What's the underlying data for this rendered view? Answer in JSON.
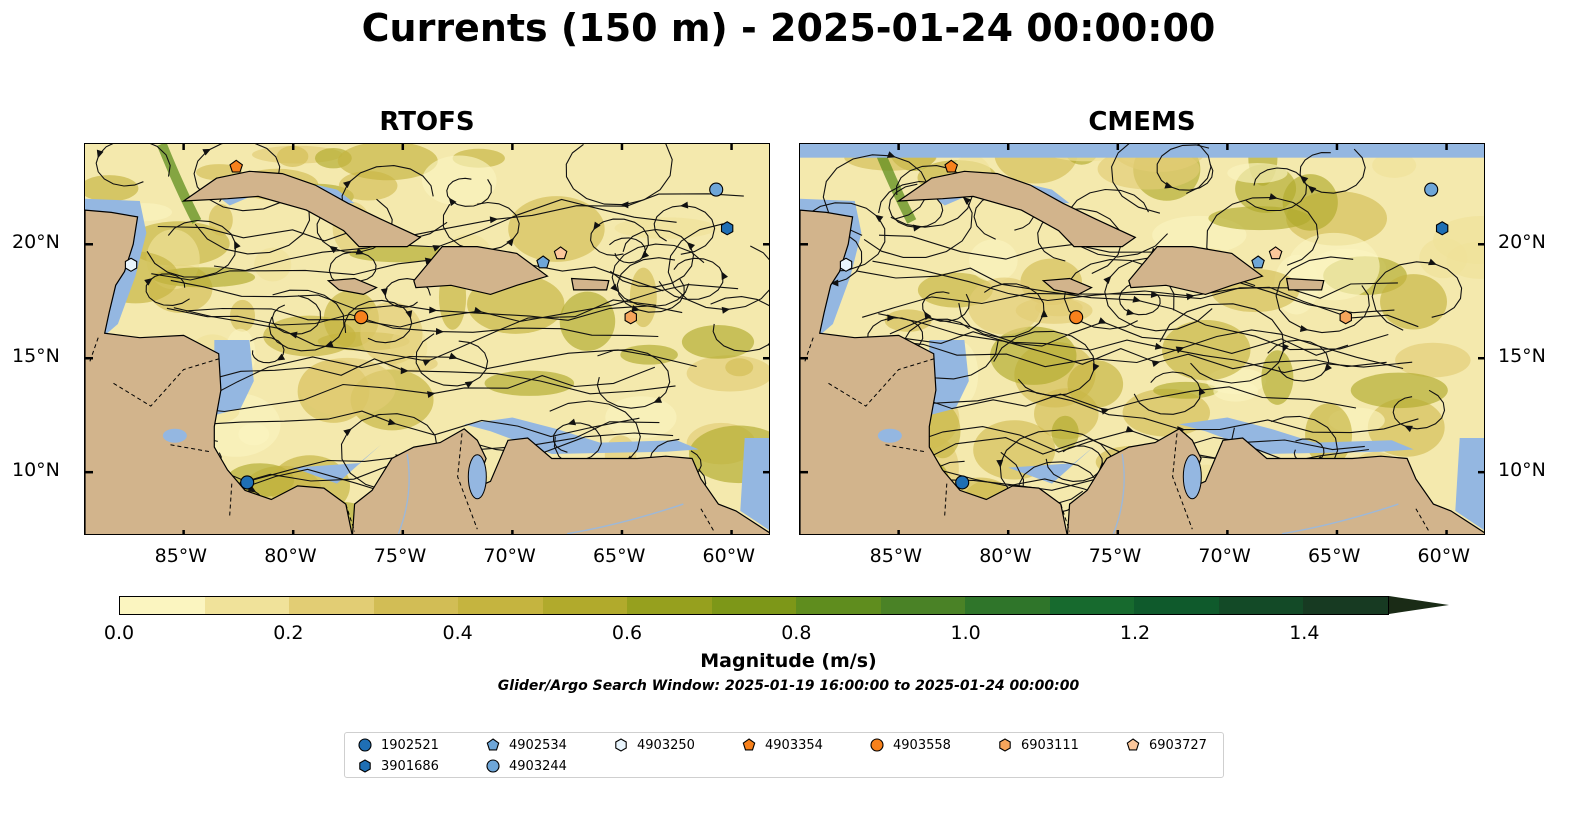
{
  "title": "Currents (150 m) - 2025-01-24 00:00:00",
  "panels": [
    {
      "title": "RTOFS"
    },
    {
      "title": "CMEMS"
    }
  ],
  "axes": {
    "lon_ticks": [
      "85°W",
      "80°W",
      "75°W",
      "70°W",
      "65°W",
      "60°W"
    ],
    "lon_values": [
      -85,
      -80,
      -75,
      -70,
      -65,
      -60
    ],
    "lat_ticks": [
      "20°N",
      "15°N",
      "10°N"
    ],
    "lat_values": [
      20,
      15,
      10
    ],
    "lon_range": [
      -89.5,
      -58.2
    ],
    "lat_range": [
      7.2,
      24.4
    ]
  },
  "colorbar": {
    "label": "Magnitude (m/s)",
    "ticks": [
      "0.0",
      "0.2",
      "0.4",
      "0.6",
      "0.8",
      "1.0",
      "1.2",
      "1.4"
    ],
    "tick_values": [
      0.0,
      0.2,
      0.4,
      0.6,
      0.8,
      1.0,
      1.2,
      1.4
    ],
    "range": [
      0.0,
      1.5
    ],
    "extend": "max",
    "colors": [
      "#fbf5c0",
      "#f0e29a",
      "#e2cd74",
      "#d2bd55",
      "#c5b43f",
      "#b1aa2c",
      "#96a01e",
      "#7d9718",
      "#5f8d1e",
      "#4a8226",
      "#2f752a",
      "#176a2e",
      "#0f5a2c",
      "#134a27",
      "#173a22",
      "#1a2b16"
    ]
  },
  "search_window": "Glider/Argo Search Window: 2025-01-19 16:00:00 to 2025-01-24 00:00:00",
  "colors": {
    "ocean_shallow": "#94b7e1",
    "land": "#d2b48c",
    "marker_dark_blue": "#1f6fb4",
    "marker_mid_blue": "#6ea6d8",
    "marker_light_blue": "#bfe0f5",
    "marker_orange": "#f7811c",
    "marker_light_orange": "#f7a55b",
    "marker_peach": "#fcc79b"
  },
  "legend": [
    {
      "id": "1902521",
      "shape": "circle",
      "color": "#1f6fb4",
      "lon": -82.1,
      "lat": 9.55
    },
    {
      "id": "3901686",
      "shape": "hexagon",
      "color": "#1f6fb4",
      "lon": -60.2,
      "lat": 20.7
    },
    {
      "id": "4902534",
      "shape": "pentagon",
      "color": "#6ea6d8",
      "lon": -68.6,
      "lat": 19.2
    },
    {
      "id": "4903244",
      "shape": "circle",
      "color": "#6ea6d8",
      "lon": -60.7,
      "lat": 22.4
    },
    {
      "id": "4903250",
      "shape": "hexagon",
      "color": "#e9f5fd",
      "lon": -87.4,
      "lat": 19.1
    },
    {
      "id": "4903354",
      "shape": "pentagon",
      "color": "#f7811c",
      "lon": -82.6,
      "lat": 23.4
    },
    {
      "id": "4903558",
      "shape": "circle",
      "color": "#f7811c",
      "lon": -76.9,
      "lat": 16.8
    },
    {
      "id": "6903111",
      "shape": "hexagon",
      "color": "#f7a55b",
      "lon": -64.6,
      "lat": 16.8
    },
    {
      "id": "6903727",
      "shape": "pentagon",
      "color": "#fcc79b",
      "lon": -67.8,
      "lat": 19.6
    }
  ]
}
